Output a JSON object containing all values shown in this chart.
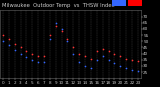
{
  "title": "Milwaukee  Outdoor Temp  vs  THSW Index",
  "bg_color": "#000000",
  "plot_bg_color": "#000000",
  "grid_color": "#666666",
  "x_tick_color": "#cccccc",
  "y_tick_color": "#cccccc",
  "temp_data": [
    [
      0,
      55
    ],
    [
      1,
      52
    ],
    [
      2,
      48
    ],
    [
      3,
      45
    ],
    [
      4,
      42
    ],
    [
      5,
      40
    ],
    [
      6,
      38
    ],
    [
      7,
      38
    ],
    [
      8,
      55
    ],
    [
      9,
      62
    ],
    [
      10,
      58
    ],
    [
      11,
      52
    ],
    [
      12,
      45
    ],
    [
      13,
      40
    ],
    [
      14,
      38
    ],
    [
      15,
      36
    ],
    [
      16,
      42
    ],
    [
      17,
      44
    ],
    [
      18,
      42
    ],
    [
      19,
      40
    ],
    [
      20,
      38
    ],
    [
      21,
      36
    ],
    [
      22,
      35
    ],
    [
      23,
      34
    ]
  ],
  "thsw_data": [
    [
      0,
      50
    ],
    [
      1,
      47
    ],
    [
      2,
      43
    ],
    [
      3,
      40
    ],
    [
      4,
      37
    ],
    [
      5,
      35
    ],
    [
      6,
      33
    ],
    [
      7,
      33
    ],
    [
      8,
      52
    ],
    [
      9,
      65
    ],
    [
      10,
      60
    ],
    [
      11,
      50
    ],
    [
      12,
      40
    ],
    [
      13,
      33
    ],
    [
      14,
      30
    ],
    [
      15,
      28
    ],
    [
      16,
      35
    ],
    [
      17,
      38
    ],
    [
      18,
      35
    ],
    [
      19,
      32
    ],
    [
      20,
      30
    ],
    [
      21,
      28
    ],
    [
      22,
      27
    ],
    [
      23,
      26
    ]
  ],
  "ylim": [
    20,
    75
  ],
  "yticks": [
    25,
    30,
    35,
    40,
    45,
    50,
    55,
    60,
    65,
    70
  ],
  "xlim": [
    -0.5,
    23.5
  ],
  "xticks": [
    0,
    1,
    2,
    3,
    4,
    5,
    6,
    7,
    8,
    9,
    10,
    11,
    12,
    13,
    14,
    15,
    16,
    17,
    18,
    19,
    20,
    21,
    22,
    23
  ],
  "dot_size": 1.5,
  "temp_color": "#ff3333",
  "thsw_color": "#3366ff",
  "title_fontsize": 3.8,
  "tick_fontsize": 3.0,
  "title_color": "#cccccc",
  "border_color": "#666666",
  "legend_blue_color": "#3366ff",
  "legend_red_color": "#ff0000"
}
